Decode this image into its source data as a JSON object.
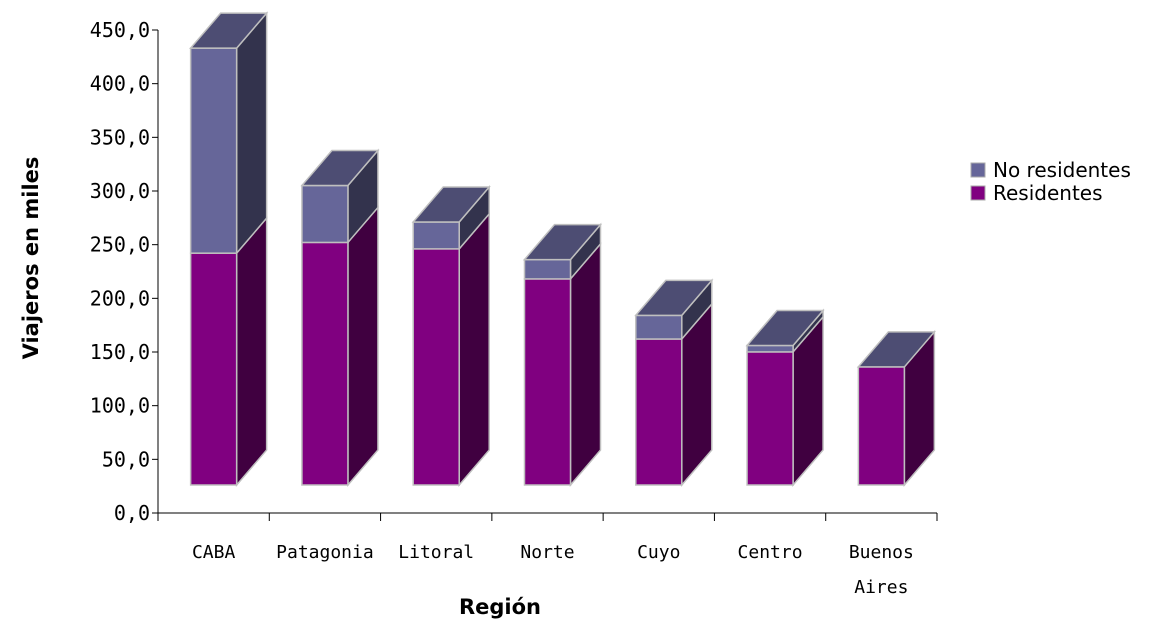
{
  "chart_data": {
    "type": "bar",
    "stacked": true,
    "three_d": true,
    "categories": [
      "CABA",
      "Patagonia",
      "Litoral",
      "Norte",
      "Cuyo",
      "Centro",
      "Buenos Aires"
    ],
    "series": [
      {
        "name": "Residentes",
        "color": "#800080",
        "values": [
          216,
          226,
          220,
          192,
          136,
          124,
          110
        ]
      },
      {
        "name": "No residentes",
        "color": "#666699",
        "values": [
          191,
          53,
          25,
          18,
          22,
          6,
          0
        ]
      }
    ],
    "xlabel": "Región",
    "ylabel": "Viajeros en miles",
    "ylim": [
      0,
      450
    ],
    "ytick_labels": [
      "0,0",
      "50,0",
      "100,0",
      "150,0",
      "200,0",
      "250,0",
      "300,0",
      "350,0",
      "400,0",
      "450,0"
    ],
    "grid": false,
    "legend_position": "right"
  }
}
